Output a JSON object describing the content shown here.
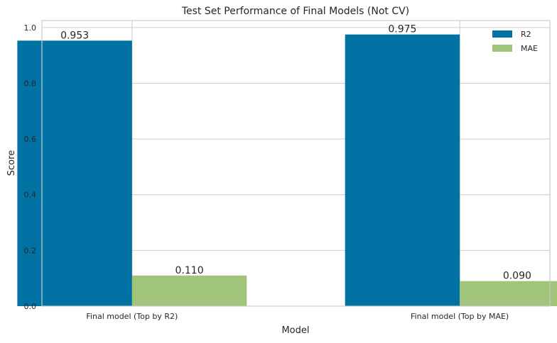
{
  "chart_data": {
    "type": "bar",
    "title": "Test Set Performance of Final Models (Not CV)",
    "xlabel": "Model",
    "ylabel": "Score",
    "categories": [
      "Final model (Top by R2)",
      "Final model (Top by MAE)"
    ],
    "series": [
      {
        "name": "R2",
        "values": [
          0.953,
          0.975
        ],
        "labels": [
          "0.953",
          "0.975"
        ],
        "color": "#0072a3"
      },
      {
        "name": "MAE",
        "values": [
          0.11,
          0.09
        ],
        "labels": [
          "0.110",
          "0.090"
        ],
        "color": "#a0c47a"
      }
    ],
    "ylim": [
      0,
      1.025
    ],
    "yticks": [
      0.0,
      0.2,
      0.4,
      0.6,
      0.8,
      1.0
    ],
    "ytick_labels": [
      "0.0",
      "0.2",
      "0.4",
      "0.6",
      "0.8",
      "1.0"
    ],
    "grid": true,
    "legend_position": "top-right"
  }
}
